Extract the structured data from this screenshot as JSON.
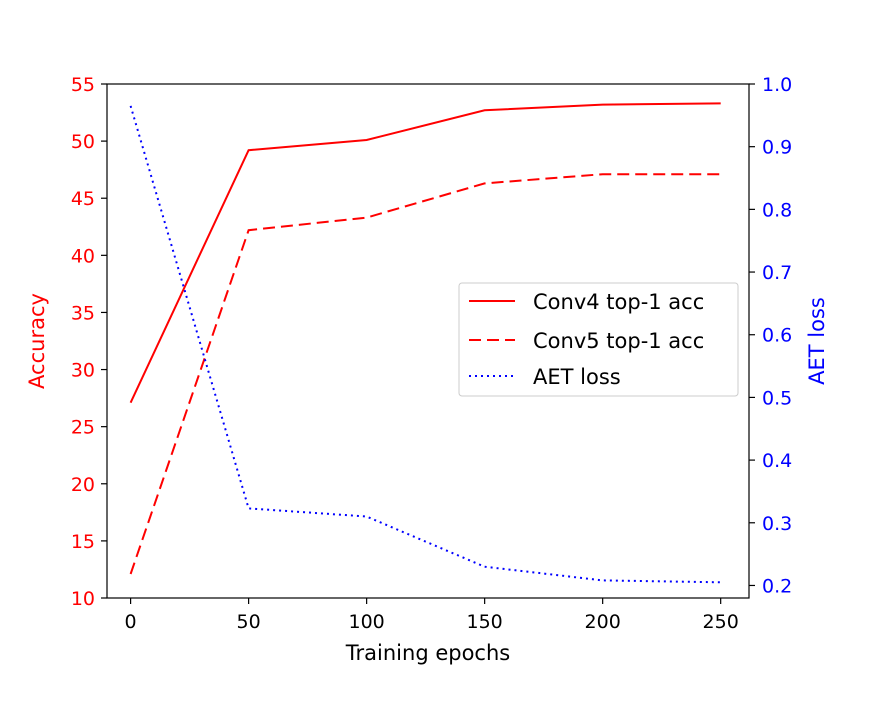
{
  "chart_data": {
    "type": "line",
    "x": [
      0,
      50,
      100,
      150,
      200,
      250
    ],
    "xlabel": "Training epochs",
    "xlim": [
      -10,
      262
    ],
    "xticks": [
      0,
      50,
      100,
      150,
      200,
      250
    ],
    "left_axis": {
      "label": "Accuracy",
      "color": "#ff0000",
      "ylim": [
        10,
        55
      ],
      "ticks": [
        10,
        15,
        20,
        25,
        30,
        35,
        40,
        45,
        50,
        55
      ]
    },
    "right_axis": {
      "label": "AET loss",
      "color": "#0000ff",
      "ylim": [
        0.18,
        1.0
      ],
      "ticks": [
        "0.2",
        "0.3",
        "0.4",
        "0.5",
        "0.6",
        "0.7",
        "0.8",
        "0.9",
        "1.0"
      ]
    },
    "series": [
      {
        "name": "Conv4 top-1 acc",
        "axis": "left",
        "color": "#ff0000",
        "style": "solid",
        "values": [
          27.1,
          49.2,
          50.1,
          52.7,
          53.2,
          53.3
        ]
      },
      {
        "name": "Conv5 top-1 acc",
        "axis": "left",
        "color": "#ff0000",
        "style": "dashed",
        "values": [
          12.1,
          42.2,
          43.3,
          46.3,
          47.1,
          47.1
        ]
      },
      {
        "name": "AET loss",
        "axis": "right",
        "color": "#0000ff",
        "style": "dotted",
        "values": [
          0.965,
          0.323,
          0.31,
          0.23,
          0.208,
          0.205
        ]
      }
    ],
    "legend_position": "center-right",
    "grid": false
  }
}
